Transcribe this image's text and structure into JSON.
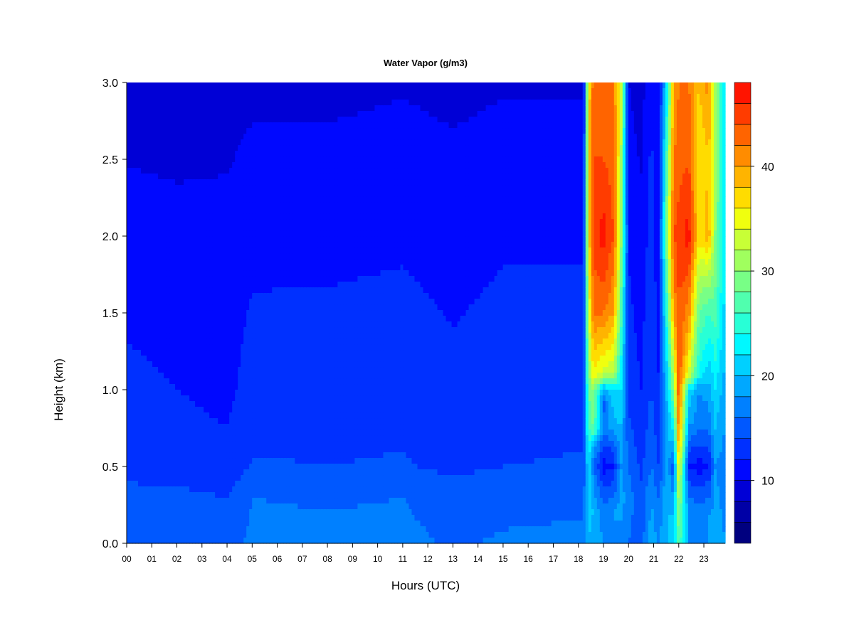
{
  "chart_data": {
    "type": "heatmap",
    "title": "Water Vapor (g/m3)",
    "xlabel": "Hours (UTC)",
    "ylabel": "Height (km)",
    "x_ticks": [
      "00",
      "01",
      "02",
      "03",
      "04",
      "05",
      "06",
      "07",
      "08",
      "09",
      "10",
      "11",
      "12",
      "13",
      "14",
      "15",
      "16",
      "17",
      "18",
      "19",
      "20",
      "21",
      "22",
      "23"
    ],
    "xlim": [
      0,
      23.85
    ],
    "y_ticks": [
      "0.0",
      "0.5",
      "1.0",
      "1.5",
      "2.0",
      "2.5",
      "3.0"
    ],
    "ylim": [
      0,
      3
    ],
    "colorbar": {
      "range": [
        4,
        48
      ],
      "step": 2,
      "tick_labels": [
        "10",
        "20",
        "30",
        "40"
      ],
      "tick_values": [
        10,
        20,
        30,
        40
      ],
      "colors": [
        "#00007f",
        "#0000a6",
        "#0000d6",
        "#0008ff",
        "#0030ff",
        "#0058ff",
        "#0080ff",
        "#00a8ff",
        "#00d0ff",
        "#00f8ff",
        "#28ffd6",
        "#50ffae",
        "#78ff86",
        "#a0ff5e",
        "#c8ff36",
        "#f0ff0e",
        "#ffdc00",
        "#ffb400",
        "#ff8c00",
        "#ff6400",
        "#ff3c00",
        "#ff1400",
        "#d60000",
        "#ae0000",
        "#860000"
      ]
    },
    "profiles": [
      {
        "hour": 0,
        "heights": [
          0,
          0.3,
          0.5,
          1.0,
          1.8,
          3.0
        ],
        "values": [
          15.5,
          14.5,
          13.5,
          12.5,
          11.2,
          9.0
        ]
      },
      {
        "hour": 2,
        "heights": [
          0,
          0.3,
          0.5,
          1.0,
          1.8,
          3.0
        ],
        "values": [
          15.5,
          14.5,
          13.0,
          12.0,
          11.0,
          8.8
        ]
      },
      {
        "hour": 4,
        "heights": [
          0,
          0.3,
          0.5,
          1.0,
          1.8,
          3.0
        ],
        "values": [
          15.0,
          14.0,
          12.5,
          11.5,
          11.0,
          9.0
        ]
      },
      {
        "hour": 5,
        "heights": [
          0,
          0.3,
          0.5,
          1.0,
          1.8,
          3.0
        ],
        "values": [
          16.5,
          16.0,
          14.2,
          12.8,
          11.8,
          9.5
        ]
      },
      {
        "hour": 8,
        "heights": [
          0,
          0.3,
          0.5,
          1.0,
          1.8,
          3.0
        ],
        "values": [
          16.5,
          15.8,
          14.0,
          13.0,
          11.8,
          9.5
        ]
      },
      {
        "hour": 11,
        "heights": [
          0,
          0.3,
          0.5,
          1.0,
          1.8,
          3.0
        ],
        "values": [
          16.5,
          16.0,
          14.2,
          13.2,
          12.0,
          9.8
        ]
      },
      {
        "hour": 13,
        "heights": [
          0,
          0.3,
          0.5,
          1.0,
          1.8,
          3.0
        ],
        "values": [
          15.8,
          15.0,
          13.5,
          12.5,
          11.5,
          9.5
        ]
      },
      {
        "hour": 15,
        "heights": [
          0,
          0.3,
          0.5,
          1.0,
          1.8,
          3.0
        ],
        "values": [
          16.2,
          15.5,
          14.0,
          13.0,
          12.0,
          9.8
        ]
      },
      {
        "hour": 18.2,
        "heights": [
          0,
          0.3,
          0.5,
          1.0,
          1.8,
          3.0
        ],
        "values": [
          16.5,
          15.5,
          14.2,
          13.2,
          12.0,
          9.8
        ]
      },
      {
        "hour": 18.4,
        "heights": [
          0,
          0.3,
          0.5,
          0.75,
          1.0,
          1.5,
          2.0,
          2.5,
          3.0
        ],
        "values": [
          20,
          21,
          22,
          26,
          28,
          33,
          36,
          36,
          36
        ]
      },
      {
        "hour": 18.6,
        "heights": [
          0,
          0.2,
          0.4,
          0.5,
          0.6,
          0.75,
          1.0,
          1.1,
          1.5,
          2.0,
          2.5,
          3.0
        ],
        "values": [
          19,
          20,
          18,
          16,
          18,
          28,
          30,
          36,
          42,
          45,
          44,
          43
        ]
      },
      {
        "hour": 19.0,
        "heights": [
          0,
          0.2,
          0.4,
          0.5,
          0.6,
          0.75,
          0.9,
          1.0,
          1.1,
          1.5,
          2.0,
          2.5,
          3.0
        ],
        "values": [
          18,
          17,
          13,
          11,
          13,
          17,
          15,
          19,
          33,
          42,
          47,
          44,
          43
        ]
      },
      {
        "hour": 19.4,
        "heights": [
          0,
          0.2,
          0.4,
          0.5,
          0.6,
          0.75,
          1.0,
          1.1,
          1.5,
          2.0,
          2.5,
          3.0
        ],
        "values": [
          18,
          18,
          14,
          12,
          14,
          19,
          22,
          32,
          40,
          44,
          43,
          42
        ]
      },
      {
        "hour": 19.7,
        "heights": [
          0,
          0.3,
          0.5,
          1.0,
          1.5,
          2.0,
          2.5,
          3.0
        ],
        "values": [
          17,
          19,
          18,
          22,
          27,
          31,
          32,
          34
        ]
      },
      {
        "hour": 20.0,
        "heights": [
          0,
          0.3,
          0.5,
          1.0,
          1.8,
          3.0
        ],
        "values": [
          16,
          17,
          16,
          13,
          12,
          10
        ]
      },
      {
        "hour": 20.5,
        "heights": [
          0,
          0.3,
          0.5,
          1.0,
          1.8,
          3.0
        ],
        "values": [
          15,
          14.5,
          13.5,
          12.0,
          11.0,
          9.0
        ]
      },
      {
        "hour": 20.9,
        "heights": [
          0,
          0.3,
          0.5,
          1.0,
          1.8,
          3.0
        ],
        "values": [
          19,
          18,
          16,
          14,
          13,
          12
        ]
      },
      {
        "hour": 21.2,
        "heights": [
          0,
          0.3,
          0.5,
          1.0,
          1.8,
          3.0
        ],
        "values": [
          18,
          16,
          14,
          12,
          11,
          10
        ]
      },
      {
        "hour": 21.55,
        "heights": [
          0,
          0.3,
          0.5,
          1.0,
          1.5,
          2.0,
          2.5,
          3.0
        ],
        "values": [
          20,
          20,
          19,
          21,
          26,
          31,
          28,
          23
        ]
      },
      {
        "hour": 21.8,
        "heights": [
          0,
          0.2,
          0.4,
          0.5,
          0.6,
          0.8,
          1.0,
          1.5,
          2.0,
          2.5,
          3.0
        ],
        "values": [
          20,
          20,
          16,
          14,
          18,
          24,
          30,
          40,
          44,
          42,
          40
        ]
      },
      {
        "hour": 22.0,
        "heights": [
          0,
          0.2,
          0.5,
          0.75,
          1.0,
          1.5,
          2.0,
          2.5,
          3.0
        ],
        "values": [
          28,
          30,
          36,
          42,
          44,
          44,
          45,
          43,
          42
        ]
      },
      {
        "hour": 22.4,
        "heights": [
          0,
          0.2,
          0.4,
          0.5,
          0.6,
          0.8,
          1.0,
          1.1,
          1.5,
          2.0,
          2.5,
          3.0
        ],
        "values": [
          18,
          18,
          14,
          12,
          14,
          19,
          22,
          34,
          41,
          47,
          44,
          42
        ]
      },
      {
        "hour": 22.8,
        "heights": [
          0,
          0.2,
          0.4,
          0.5,
          0.6,
          0.8,
          1.0,
          1.1,
          1.5,
          1.75,
          2.0,
          2.5,
          3.0
        ],
        "values": [
          18,
          17,
          13,
          11,
          13,
          17,
          18,
          24,
          28,
          32,
          37,
          36,
          38
        ]
      },
      {
        "hour": 23.2,
        "heights": [
          0,
          0.2,
          0.4,
          0.5,
          0.6,
          0.8,
          1.0,
          1.5,
          1.75,
          2.0,
          2.5,
          3.0
        ],
        "values": [
          18,
          18,
          14,
          12,
          14,
          17,
          19,
          26,
          32,
          39,
          38,
          41
        ]
      },
      {
        "hour": 23.45,
        "heights": [
          0,
          0.5,
          1.0,
          1.5,
          2.0,
          2.5,
          3.0
        ],
        "values": [
          19,
          18,
          22,
          27,
          30,
          31,
          32
        ]
      },
      {
        "hour": 23.85,
        "heights": [
          0,
          0.5,
          1.0,
          1.5,
          2.0,
          2.5,
          3.0
        ],
        "values": [
          18,
          17,
          19,
          21,
          22,
          22,
          21
        ]
      }
    ]
  }
}
